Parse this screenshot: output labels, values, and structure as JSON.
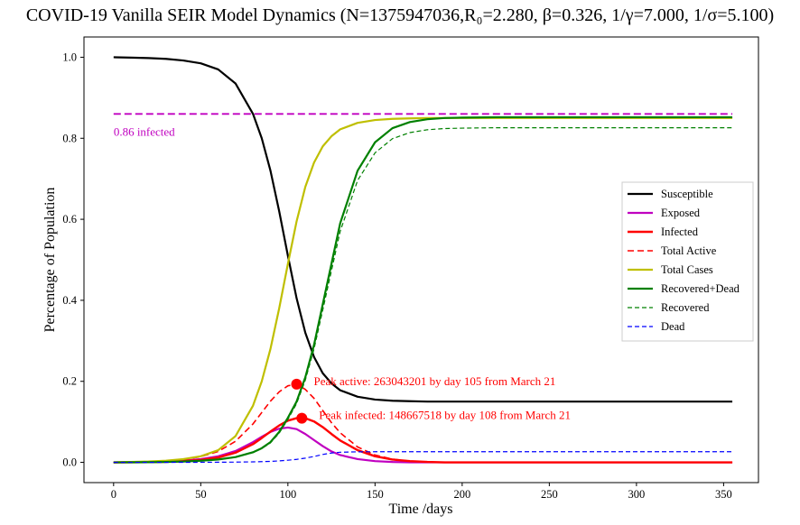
{
  "chart_data": {
    "type": "line",
    "title": "COVID-19 Vanilla SEIR Model Dynamics (N=1375947036,R₀=2.280, β=0.326, 1/γ=7.000, 1/σ=5.100)",
    "xlabel": "Time /days",
    "ylabel": "Percentage of Population",
    "xlim": [
      -17,
      370
    ],
    "ylim": [
      -0.05,
      1.05
    ],
    "xticks": [
      0,
      50,
      100,
      150,
      200,
      250,
      300,
      350
    ],
    "yticks": [
      0.0,
      0.2,
      0.4,
      0.6,
      0.8,
      1.0
    ],
    "xtick_labels": [
      "0",
      "50",
      "100",
      "150",
      "200",
      "250",
      "300",
      "350"
    ],
    "ytick_labels": [
      "0.0",
      "0.2",
      "0.4",
      "0.6",
      "0.8",
      "1.0"
    ],
    "grid": false,
    "legend_position": "center-right",
    "x": [
      0,
      10,
      20,
      30,
      40,
      50,
      60,
      70,
      80,
      85,
      90,
      95,
      100,
      105,
      110,
      115,
      120,
      125,
      130,
      140,
      150,
      160,
      170,
      180,
      190,
      200,
      220,
      250,
      300,
      355
    ],
    "series": [
      {
        "name": "Susceptible",
        "color": "#000000",
        "style": "solid",
        "width": 2.2,
        "values": [
          1.0,
          0.999,
          0.998,
          0.996,
          0.992,
          0.985,
          0.97,
          0.935,
          0.86,
          0.8,
          0.72,
          0.62,
          0.51,
          0.405,
          0.32,
          0.26,
          0.22,
          0.195,
          0.178,
          0.162,
          0.155,
          0.152,
          0.151,
          0.15,
          0.15,
          0.15,
          0.15,
          0.15,
          0.15,
          0.15
        ]
      },
      {
        "name": "Exposed",
        "color": "#c000c0",
        "style": "solid",
        "width": 2.2,
        "values": [
          0.0,
          0.0003,
          0.0008,
          0.002,
          0.004,
          0.008,
          0.015,
          0.028,
          0.05,
          0.063,
          0.075,
          0.083,
          0.086,
          0.082,
          0.07,
          0.055,
          0.04,
          0.027,
          0.018,
          0.008,
          0.003,
          0.001,
          0.0,
          0.0,
          0.0,
          0.0,
          0.0,
          0.0,
          0.0,
          0.0
        ]
      },
      {
        "name": "Infected",
        "color": "#ff0000",
        "style": "solid",
        "width": 2.4,
        "values": [
          0.0,
          0.0002,
          0.0006,
          0.0015,
          0.003,
          0.006,
          0.012,
          0.024,
          0.045,
          0.06,
          0.076,
          0.091,
          0.103,
          0.109,
          0.109,
          0.101,
          0.087,
          0.07,
          0.054,
          0.03,
          0.015,
          0.007,
          0.003,
          0.001,
          0.0,
          0.0,
          0.0,
          0.0,
          0.0,
          0.0
        ]
      },
      {
        "name": "Total Active",
        "color": "#ff0000",
        "style": "dashed",
        "width": 1.6,
        "values": [
          0.0,
          0.0005,
          0.0014,
          0.0035,
          0.007,
          0.014,
          0.027,
          0.052,
          0.095,
          0.123,
          0.151,
          0.174,
          0.189,
          0.193,
          0.18,
          0.158,
          0.128,
          0.098,
          0.073,
          0.038,
          0.018,
          0.008,
          0.003,
          0.001,
          0.0,
          0.0,
          0.0,
          0.0,
          0.0,
          0.0
        ]
      },
      {
        "name": "Total Cases",
        "color": "#bfbf00",
        "style": "solid",
        "width": 2.2,
        "values": [
          0.0,
          0.001,
          0.002,
          0.004,
          0.008,
          0.015,
          0.03,
          0.065,
          0.14,
          0.2,
          0.28,
          0.38,
          0.49,
          0.595,
          0.68,
          0.74,
          0.78,
          0.805,
          0.822,
          0.838,
          0.845,
          0.848,
          0.849,
          0.85,
          0.85,
          0.85,
          0.85,
          0.85,
          0.85,
          0.85
        ]
      },
      {
        "name": "Recovered+Dead",
        "color": "#008000",
        "style": "solid",
        "width": 2.2,
        "values": [
          0.0,
          0.0001,
          0.0004,
          0.001,
          0.002,
          0.004,
          0.007,
          0.013,
          0.025,
          0.035,
          0.05,
          0.075,
          0.11,
          0.15,
          0.21,
          0.29,
          0.39,
          0.49,
          0.59,
          0.72,
          0.79,
          0.825,
          0.84,
          0.847,
          0.85,
          0.851,
          0.852,
          0.852,
          0.852,
          0.852
        ]
      },
      {
        "name": "Recovered",
        "color": "#008000",
        "style": "dashed",
        "width": 1.2,
        "values": [
          0.0,
          0.0001,
          0.0004,
          0.001,
          0.002,
          0.0038,
          0.0067,
          0.0125,
          0.024,
          0.034,
          0.048,
          0.072,
          0.106,
          0.145,
          0.203,
          0.28,
          0.376,
          0.473,
          0.57,
          0.696,
          0.764,
          0.799,
          0.814,
          0.821,
          0.824,
          0.825,
          0.826,
          0.826,
          0.826,
          0.826
        ]
      },
      {
        "name": "Dead",
        "color": "#0000ff",
        "style": "dashed",
        "width": 1.2,
        "values": [
          0.0,
          0.0,
          0.0,
          0.0,
          0.0001,
          0.0002,
          0.0003,
          0.0006,
          0.0012,
          0.0017,
          0.0024,
          0.0036,
          0.0053,
          0.0073,
          0.0104,
          0.0145,
          0.0195,
          0.023,
          0.025,
          0.026,
          0.0262,
          0.0262,
          0.0262,
          0.0262,
          0.0262,
          0.0262,
          0.0262,
          0.0262,
          0.0262,
          0.0262
        ]
      }
    ],
    "hline": {
      "y": 0.86,
      "color": "#c000c0",
      "style": "dashed",
      "label": "0.86 infected"
    },
    "peaks": [
      {
        "x": 105,
        "y": 0.193,
        "color": "#ff0000",
        "label": "Peak active: 263043201 by day 105 from March 21"
      },
      {
        "x": 108,
        "y": 0.109,
        "color": "#ff0000",
        "label": "Peak infected: 148667518 by day 108 from March 21"
      }
    ]
  }
}
